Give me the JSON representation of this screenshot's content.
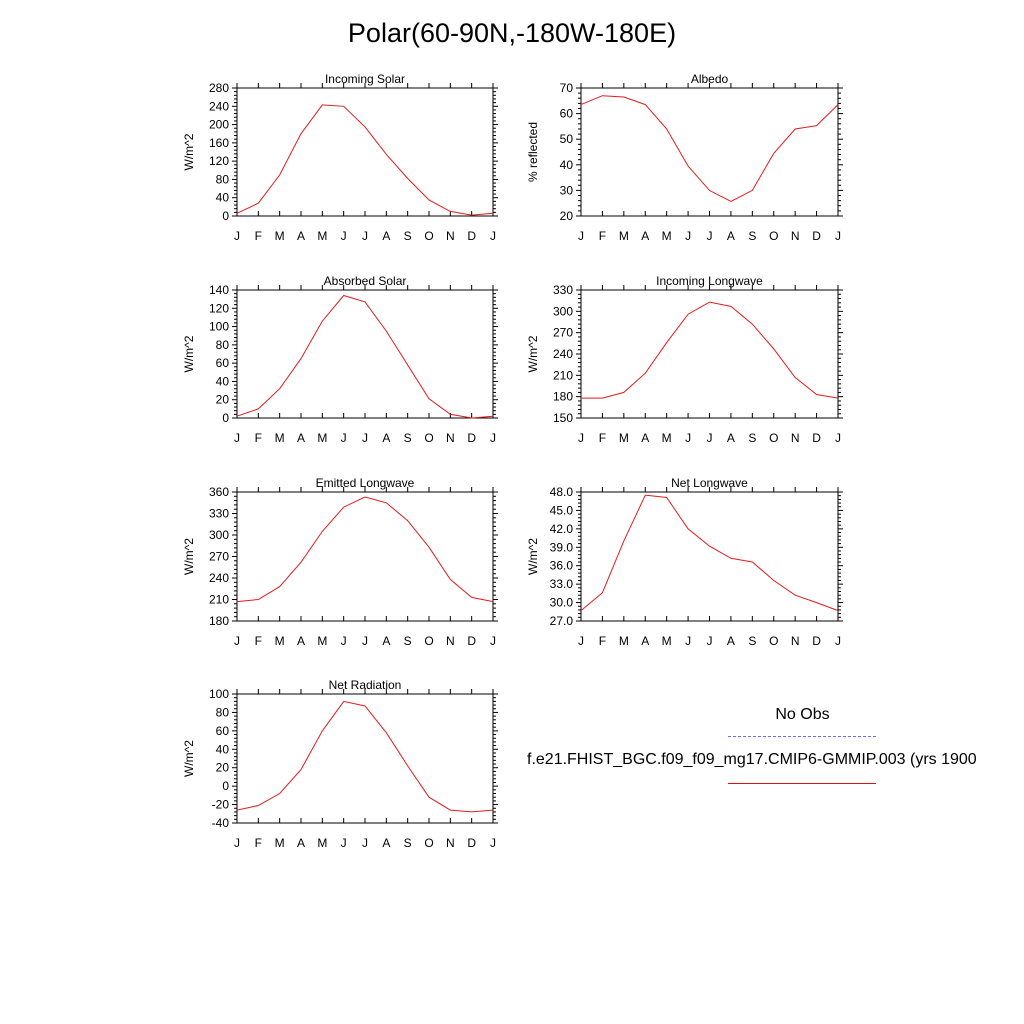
{
  "title": "Polar(60-90N,-180W-180E)",
  "colors": {
    "model_line": "#e41a1c",
    "obs_line": "#6b6bff",
    "axis": "#000000"
  },
  "legend": {
    "obs_label": "No Obs",
    "case_label": "f.e21.FHIST_BGC.f09_f09_mg17.CMIP6-GMMIP.003 (yrs 1900"
  },
  "months": [
    "J",
    "F",
    "M",
    "A",
    "M",
    "J",
    "J",
    "A",
    "S",
    "O",
    "N",
    "D",
    "J"
  ],
  "chart_data": [
    {
      "type": "line",
      "title": "Incoming Solar",
      "ylabel": "W/m^2",
      "ylim": [
        0,
        280
      ],
      "yticks": [
        0,
        40,
        80,
        120,
        160,
        200,
        240,
        280
      ],
      "ytick_labels": [
        "0",
        "40",
        "80",
        "120",
        "160",
        "200",
        "240",
        "280"
      ],
      "values": [
        6,
        28,
        90,
        180,
        243,
        240,
        195,
        135,
        82,
        35,
        10,
        2,
        6
      ]
    },
    {
      "type": "line",
      "title": "Albedo",
      "ylabel": "% reflected",
      "ylim": [
        20,
        70
      ],
      "yticks": [
        20,
        30,
        40,
        50,
        60,
        70
      ],
      "ytick_labels": [
        "20",
        "30",
        "40",
        "50",
        "60",
        "70"
      ],
      "values": [
        63.5,
        67,
        66.5,
        63.5,
        54,
        39.5,
        30,
        25.7,
        30,
        44.5,
        54,
        55.3,
        63.5
      ]
    },
    {
      "type": "line",
      "title": "Absorbed Solar",
      "ylabel": "W/m^2",
      "ylim": [
        0,
        140
      ],
      "yticks": [
        0,
        20,
        40,
        60,
        80,
        100,
        120,
        140
      ],
      "ytick_labels": [
        "0",
        "20",
        "40",
        "60",
        "80",
        "100",
        "120",
        "140"
      ],
      "values": [
        2,
        10,
        32,
        65,
        106,
        134,
        127,
        95,
        58,
        21,
        4,
        0,
        2
      ]
    },
    {
      "type": "line",
      "title": "Incoming Longwave",
      "ylabel": "W/m^2",
      "ylim": [
        150,
        330
      ],
      "yticks": [
        150,
        180,
        210,
        240,
        270,
        300,
        330
      ],
      "ytick_labels": [
        "150",
        "180",
        "210",
        "240",
        "270",
        "300",
        "330"
      ],
      "values": [
        178,
        178,
        186,
        213,
        256,
        296,
        313,
        307,
        282,
        247,
        207,
        183,
        178
      ]
    },
    {
      "type": "line",
      "title": "Emitted Longwave",
      "ylabel": "W/m^2",
      "ylim": [
        180,
        360
      ],
      "yticks": [
        180,
        210,
        240,
        270,
        300,
        330,
        360
      ],
      "ytick_labels": [
        "180",
        "210",
        "240",
        "270",
        "300",
        "330",
        "360"
      ],
      "values": [
        207,
        210,
        228,
        262,
        305,
        339,
        353,
        345,
        320,
        283,
        238,
        213,
        207
      ]
    },
    {
      "type": "line",
      "title": "Net Longwave",
      "ylabel": "W/m^2",
      "ylim": [
        27,
        48
      ],
      "yticks": [
        27,
        30,
        33,
        36,
        39,
        42,
        45,
        48
      ],
      "ytick_labels": [
        "27.0",
        "30.0",
        "33.0",
        "36.0",
        "39.0",
        "42.0",
        "45.0",
        "48.0"
      ],
      "values": [
        28.7,
        31.6,
        40,
        47.5,
        47.1,
        42,
        39.2,
        37.2,
        36.6,
        33.6,
        31.2,
        30,
        28.7
      ]
    },
    {
      "type": "line",
      "title": "Net Radiation",
      "ylabel": "W/m^2",
      "ylim": [
        -40,
        100
      ],
      "yticks": [
        -40,
        -20,
        0,
        20,
        40,
        60,
        80,
        100
      ],
      "ytick_labels": [
        "-40",
        "-20",
        "0",
        "20",
        "40",
        "60",
        "80",
        "100"
      ],
      "values": [
        -26,
        -21,
        -8,
        18,
        60,
        92,
        87,
        58,
        22,
        -12,
        -26,
        -28,
        -26
      ]
    }
  ]
}
